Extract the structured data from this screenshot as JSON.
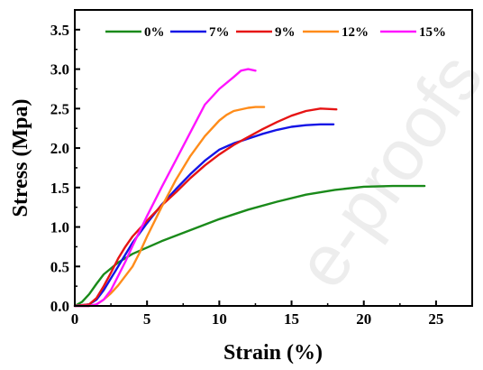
{
  "chart_data": {
    "type": "line",
    "title": "",
    "xlabel": "Strain (%)",
    "ylabel": "Stress (Mpa)",
    "xlim": [
      0,
      27.5
    ],
    "ylim": [
      0,
      3.75
    ],
    "x_ticks": [
      0,
      5,
      10,
      15,
      20,
      25
    ],
    "x_tick_labels": [
      "0",
      "5",
      "10",
      "15",
      "20",
      "25"
    ],
    "y_ticks": [
      0,
      0.5,
      1.0,
      1.5,
      2.0,
      2.5,
      3.0,
      3.5
    ],
    "y_tick_labels": [
      "0.0",
      "0.5",
      "1.0",
      "1.5",
      "2.0",
      "2.5",
      "3.0",
      "3.5"
    ],
    "grid": false,
    "legend_position": "top",
    "watermark": "e-proofs",
    "series": [
      {
        "name": "0%",
        "color": "#1a8a1a",
        "x": [
          0,
          0.5,
          1,
          1.5,
          2,
          3,
          4,
          5,
          6,
          8,
          10,
          12,
          14,
          16,
          18,
          20,
          22,
          24.2
        ],
        "y": [
          0,
          0.05,
          0.15,
          0.28,
          0.4,
          0.55,
          0.66,
          0.74,
          0.82,
          0.96,
          1.1,
          1.22,
          1.32,
          1.41,
          1.47,
          1.51,
          1.52,
          1.52
        ]
      },
      {
        "name": "7%",
        "color": "#1414e6",
        "x": [
          0,
          1,
          1.5,
          2,
          2.5,
          3,
          3.5,
          4,
          5,
          6,
          7,
          8,
          9,
          10,
          11,
          12,
          13,
          14,
          15,
          16,
          17,
          17.9
        ],
        "y": [
          0,
          0.02,
          0.08,
          0.2,
          0.35,
          0.5,
          0.65,
          0.8,
          1.05,
          1.28,
          1.48,
          1.67,
          1.84,
          1.98,
          2.06,
          2.12,
          2.18,
          2.23,
          2.27,
          2.29,
          2.3,
          2.3
        ]
      },
      {
        "name": "9%",
        "color": "#e61414",
        "x": [
          0,
          1,
          1.5,
          2,
          2.5,
          3,
          3.5,
          4,
          5,
          6,
          7,
          8,
          9,
          10,
          11,
          12,
          13,
          14,
          15,
          16,
          17,
          18.1
        ],
        "y": [
          0,
          0.02,
          0.1,
          0.25,
          0.42,
          0.6,
          0.75,
          0.88,
          1.08,
          1.27,
          1.44,
          1.62,
          1.78,
          1.92,
          2.04,
          2.14,
          2.24,
          2.33,
          2.41,
          2.47,
          2.5,
          2.49
        ]
      },
      {
        "name": "12%",
        "color": "#ff8c1a",
        "x": [
          0,
          1,
          1.5,
          2,
          2.5,
          3,
          3.5,
          4,
          4.5,
          5,
          6,
          7,
          8,
          9,
          10,
          10.5,
          11,
          12,
          12.5,
          13.1
        ],
        "y": [
          0,
          0.0,
          0.02,
          0.08,
          0.16,
          0.26,
          0.38,
          0.5,
          0.68,
          0.88,
          1.25,
          1.6,
          1.9,
          2.15,
          2.35,
          2.42,
          2.47,
          2.51,
          2.52,
          2.52
        ]
      },
      {
        "name": "15%",
        "color": "#ff14ff",
        "x": [
          0,
          1,
          1.5,
          2,
          2.5,
          3,
          3.5,
          4,
          5,
          6,
          7,
          8,
          9,
          10,
          11,
          11.5,
          12,
          12.5
        ],
        "y": [
          0,
          0.0,
          0.02,
          0.08,
          0.2,
          0.38,
          0.56,
          0.76,
          1.14,
          1.5,
          1.85,
          2.2,
          2.55,
          2.75,
          2.9,
          2.98,
          3.0,
          2.98
        ]
      }
    ]
  }
}
